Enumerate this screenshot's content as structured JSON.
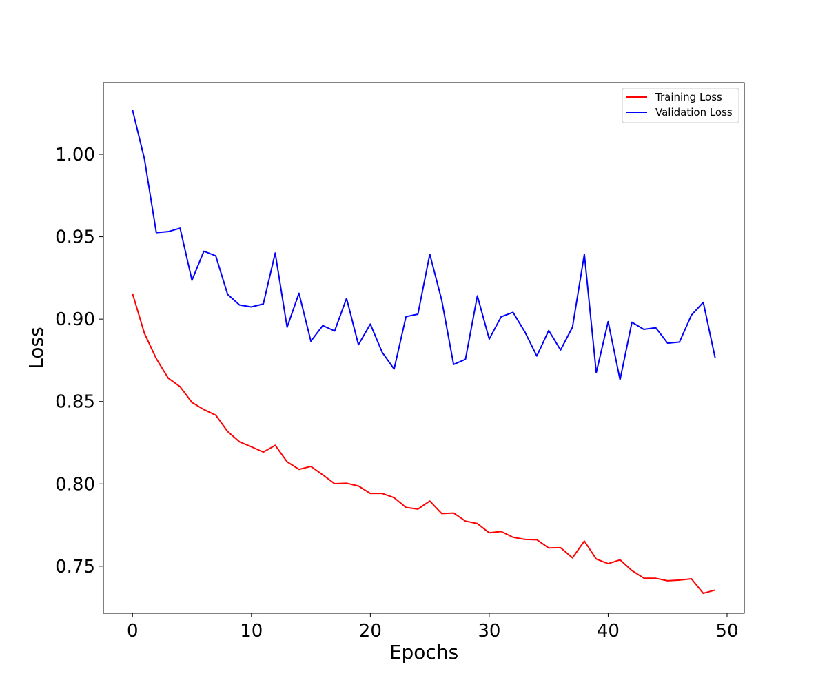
{
  "chart_data": {
    "type": "line",
    "title": "",
    "xlabel": "Epochs",
    "ylabel": "Loss",
    "xlim": [
      -2.45,
      51.45
    ],
    "ylim": [
      0.7215,
      1.0435
    ],
    "xticks": [
      0,
      10,
      20,
      30,
      40,
      50
    ],
    "yticks": [
      0.75,
      0.8,
      0.85,
      0.9,
      0.95,
      1.0
    ],
    "xtick_labels": [
      "0",
      "10",
      "20",
      "30",
      "40",
      "50"
    ],
    "ytick_labels": [
      "0.75",
      "0.80",
      "0.85",
      "0.90",
      "0.95",
      "1.00"
    ],
    "grid": false,
    "legend_position": "top-right",
    "x": [
      0,
      1,
      2,
      3,
      4,
      5,
      6,
      7,
      8,
      9,
      10,
      11,
      12,
      13,
      14,
      15,
      16,
      17,
      18,
      19,
      20,
      21,
      22,
      23,
      24,
      25,
      26,
      27,
      28,
      29,
      30,
      31,
      32,
      33,
      34,
      35,
      36,
      37,
      38,
      39,
      40,
      41,
      42,
      43,
      44,
      45,
      46,
      47,
      48,
      49
    ],
    "series": [
      {
        "name": "Training Loss",
        "color": "#ff0000",
        "values": [
          0.9155,
          0.8914,
          0.876,
          0.8642,
          0.859,
          0.8494,
          0.8451,
          0.8417,
          0.8318,
          0.8255,
          0.8225,
          0.8193,
          0.8234,
          0.8134,
          0.8088,
          0.8106,
          0.8055,
          0.8001,
          0.8004,
          0.7987,
          0.7942,
          0.7942,
          0.7916,
          0.7857,
          0.7847,
          0.7896,
          0.782,
          0.7823,
          0.7774,
          0.7759,
          0.7703,
          0.7711,
          0.7676,
          0.7663,
          0.7661,
          0.7611,
          0.7613,
          0.7551,
          0.7653,
          0.7544,
          0.7516,
          0.7539,
          0.7474,
          0.7428,
          0.7427,
          0.7412,
          0.7416,
          0.7424,
          0.7336,
          0.7356
        ]
      },
      {
        "name": "Validation Loss",
        "color": "#0000ff",
        "values": [
          1.027,
          0.9973,
          0.9525,
          0.9531,
          0.9552,
          0.9236,
          0.9412,
          0.9384,
          0.915,
          0.9086,
          0.9074,
          0.9092,
          0.9401,
          0.8951,
          0.9157,
          0.8866,
          0.8961,
          0.8928,
          0.9126,
          0.8845,
          0.897,
          0.8798,
          0.8697,
          0.9015,
          0.903,
          0.9394,
          0.9116,
          0.8725,
          0.8756,
          0.9141,
          0.8879,
          0.9014,
          0.9041,
          0.8922,
          0.8776,
          0.8931,
          0.8813,
          0.8951,
          0.9394,
          0.8675,
          0.8985,
          0.8632,
          0.8981,
          0.8938,
          0.8948,
          0.8854,
          0.8861,
          0.9024,
          0.9102,
          0.8764
        ]
      }
    ]
  }
}
